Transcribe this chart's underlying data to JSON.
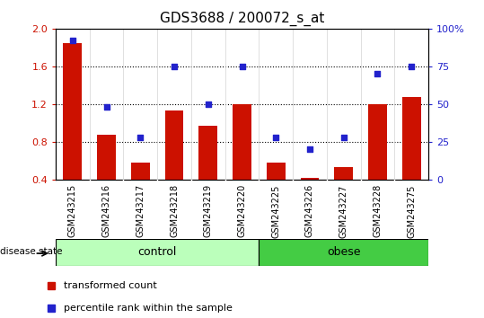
{
  "title": "GDS3688 / 200072_s_at",
  "samples": [
    "GSM243215",
    "GSM243216",
    "GSM243217",
    "GSM243218",
    "GSM243219",
    "GSM243220",
    "GSM243225",
    "GSM243226",
    "GSM243227",
    "GSM243228",
    "GSM243275"
  ],
  "red_values": [
    1.85,
    0.88,
    0.58,
    1.13,
    0.97,
    1.2,
    0.58,
    0.42,
    0.53,
    1.2,
    1.28
  ],
  "blue_values": [
    92,
    48,
    28,
    75,
    50,
    75,
    28,
    20,
    28,
    70,
    75
  ],
  "ylim_left": [
    0.4,
    2.0
  ],
  "ylim_right": [
    0,
    100
  ],
  "yticks_left": [
    0.4,
    0.8,
    1.2,
    1.6,
    2.0
  ],
  "yticks_right": [
    0,
    25,
    50,
    75,
    100
  ],
  "ytick_labels_right": [
    "0",
    "25",
    "50",
    "75",
    "100%"
  ],
  "red_color": "#cc1100",
  "blue_color": "#2222cc",
  "bar_width": 0.55,
  "control_count": 6,
  "obese_count": 5,
  "control_color": "#bbffbb",
  "obese_color": "#44cc44",
  "control_label": "control",
  "obese_label": "obese",
  "disease_state_label": "disease state",
  "legend_red": "transformed count",
  "legend_blue": "percentile rank within the sample",
  "grid_yticks": [
    0.8,
    1.2,
    1.6
  ],
  "title_fontsize": 11,
  "bar_bottom": 0.4,
  "gray_color": "#cccccc",
  "white_color": "#ffffff"
}
